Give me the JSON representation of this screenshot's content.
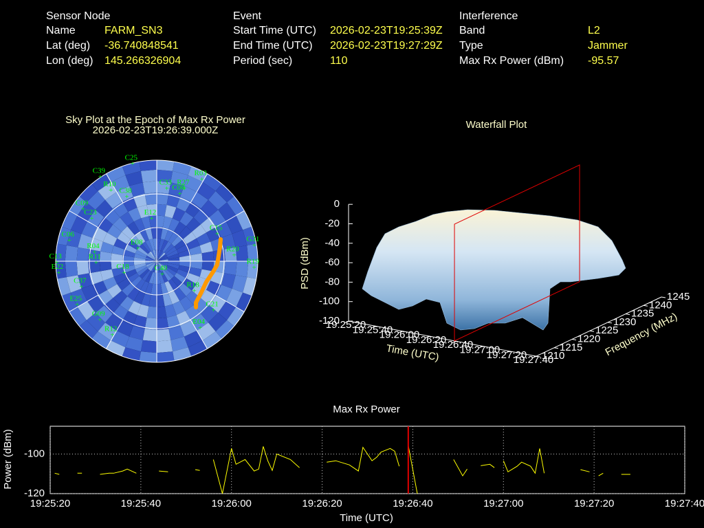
{
  "info": {
    "sensor": {
      "title": "Sensor Node",
      "rows": [
        [
          "Name",
          "FARM_SN3"
        ],
        [
          "Lat (deg)",
          "-36.740848541"
        ],
        [
          "Lon (deg)",
          "145.266326904"
        ]
      ]
    },
    "event": {
      "title": "Event",
      "rows": [
        [
          "Start Time (UTC)",
          "2026-02-23T19:25:39Z"
        ],
        [
          "End Time (UTC)",
          "2026-02-23T19:27:29Z"
        ],
        [
          "Period (sec)",
          110
        ]
      ]
    },
    "interference": {
      "title": "Interference",
      "rows": [
        [
          "Band",
          "L2"
        ],
        [
          "Type",
          "Jammer"
        ],
        [
          "Max Rx Power (dBm)",
          -95.57
        ]
      ]
    }
  },
  "chart_data": [
    {
      "type": "polar",
      "title": "Sky Plot at the Epoch of Max Rx Power",
      "subtitle": "2026-02-23T19:26:39.000Z",
      "satellite_color": "#00ff00",
      "satellites": [
        {
          "name": "C25",
          "az": 346,
          "el": 1
        },
        {
          "name": "C39",
          "az": 326,
          "el": 0
        },
        {
          "name": "R10",
          "az": 327,
          "el": 15
        },
        {
          "name": "C33",
          "az": 8,
          "el": 25
        },
        {
          "name": "R27",
          "az": 21,
          "el": 21
        },
        {
          "name": "R03",
          "az": 29,
          "el": 7
        },
        {
          "name": "C38",
          "az": 335,
          "el": 27
        },
        {
          "name": "E12",
          "az": 353,
          "el": 52
        },
        {
          "name": "C09",
          "az": 305,
          "el": 10
        },
        {
          "name": "C23",
          "az": 303,
          "el": 21
        },
        {
          "name": "C06",
          "az": 283,
          "el": 10
        },
        {
          "name": "R04",
          "az": 278,
          "el": 34
        },
        {
          "name": "R11",
          "az": 268,
          "el": 36
        },
        {
          "name": "C13",
          "az": 269,
          "el": 1
        },
        {
          "name": "E22",
          "az": 263,
          "el": 2
        },
        {
          "name": "C37",
          "az": 251,
          "el": 19
        },
        {
          "name": "E25",
          "az": 241,
          "el": 9
        },
        {
          "name": "C18",
          "az": 250,
          "el": 59
        },
        {
          "name": "C40",
          "az": 158,
          "el": 77
        },
        {
          "name": "E08",
          "az": 303,
          "el": 70
        },
        {
          "name": "C15",
          "az": 66,
          "el": 31
        },
        {
          "name": "G31",
          "az": 81,
          "el": 2
        },
        {
          "name": "R19",
          "az": 94,
          "el": 3
        },
        {
          "name": "R20",
          "az": 86,
          "el": 21
        },
        {
          "name": "C21",
          "az": 131,
          "el": 23
        },
        {
          "name": "R12",
          "az": 211,
          "el": 13
        },
        {
          "name": "G09",
          "az": 224,
          "el": 17
        },
        {
          "name": "R18",
          "az": 129,
          "el": 47
        },
        {
          "name": "E04",
          "az": 147,
          "el": 19
        },
        {
          "name": "C08",
          "az": 19,
          "el": 27
        }
      ],
      "track": {
        "color": "#ff9900",
        "az": [
          71,
          77.7,
          84.9,
          93.3,
          100.4,
          112.6,
          124.7,
          136.5,
          139.6
        ],
        "el": [
          29.8,
          32.4,
          34.7,
          36.1,
          38.9,
          42.2,
          41.6,
          39.3,
          36.1
        ]
      }
    },
    {
      "type": "surface3d",
      "title": "Waterfall Plot",
      "xlabel": "Time (UTC)",
      "ylabel": "Frequency (MHz)",
      "zlabel": "PSD (dBm)",
      "xlim": [
        "19:25:20",
        "19:27:40"
      ],
      "xticks": [
        "19:25:20",
        "19:25:40",
        "19:26:00",
        "19:26:20",
        "19:26:40",
        "19:27:00",
        "19:27:20",
        "19:27:40"
      ],
      "ylim": [
        1210,
        1245
      ],
      "yticks": [
        1210,
        1215,
        1220,
        1225,
        1230,
        1235,
        1240,
        1245
      ],
      "zlim": [
        -120,
        0
      ],
      "zticks": [
        -120,
        -100,
        -80,
        -60,
        -40,
        -20,
        0
      ],
      "marker_color": "#e00000"
    },
    {
      "type": "line",
      "title": "Max Rx Power",
      "xlabel": "Time (UTC)",
      "ylabel": "Power (dBm)",
      "color": "#ffff00",
      "marker_color": "#e00000",
      "grid": true,
      "xlim": [
        "19:25:20",
        "19:27:40"
      ],
      "xticks": [
        "19:25:20",
        "19:25:40",
        "19:26:00",
        "19:26:20",
        "19:26:40",
        "19:27:00",
        "19:27:20",
        "19:27:40"
      ],
      "ylim": [
        -120,
        -86
      ],
      "yticks": [
        -120,
        -100
      ],
      "x": [
        "19:25:21",
        "19:25:22",
        "19:25:24",
        "19:25:26",
        "19:25:27",
        "19:25:29",
        "19:25:31",
        "19:25:33",
        "19:25:34",
        "19:25:36",
        "19:25:37",
        "19:25:39",
        "19:25:41",
        "19:25:44",
        "19:25:46",
        "19:25:49",
        "19:25:52",
        "19:25:53",
        "19:25:55",
        "19:25:56",
        "19:25:58",
        "19:26:00",
        "19:26:01",
        "19:26:03",
        "19:26:05",
        "19:26:06",
        "19:26:07",
        "19:26:08",
        "19:26:09",
        "19:26:10",
        "19:26:13",
        "19:26:15",
        "19:26:18",
        "19:26:21",
        "19:26:23",
        "19:26:26",
        "19:26:28",
        "19:26:29",
        "19:26:31",
        "19:26:32",
        "19:26:33",
        "19:26:35",
        "19:26:36",
        "19:26:37",
        "19:26:38",
        "19:26:39",
        "19:26:41",
        "19:26:45",
        "19:26:49",
        "19:26:51",
        "19:26:52",
        "19:26:54",
        "19:26:55",
        "19:26:57",
        "19:26:58",
        "19:26:59",
        "19:27:00",
        "19:27:01",
        "19:27:03",
        "19:27:04",
        "19:27:06",
        "19:27:07",
        "19:27:08",
        "19:27:09",
        "19:27:13",
        "19:27:17",
        "19:27:19",
        "19:27:20",
        "19:27:21",
        "19:27:22",
        "19:27:24",
        "19:27:26",
        "19:27:28"
      ],
      "values": [
        -109.7,
        -110.3,
        null,
        -109.7,
        -109.7,
        null,
        -110.3,
        -109.7,
        -109.7,
        -108.6,
        -107.6,
        -109.7,
        null,
        -108.6,
        -109.0,
        null,
        -107.9,
        -108.3,
        null,
        -102.8,
        -120,
        -97.2,
        -105.2,
        -102.8,
        -108.6,
        -107.6,
        -96.2,
        -103.4,
        -108.3,
        -100.0,
        -102.8,
        -106.9,
        null,
        -104.1,
        -103.4,
        -105.5,
        -108.6,
        -96.6,
        -103.4,
        -101.7,
        -99.0,
        -97.2,
        -98.6,
        -106.2,
        null,
        -95.57,
        -120,
        null,
        -102.8,
        -111.0,
        -107.6,
        null,
        -105.9,
        -105.2,
        -106.9,
        null,
        -103.4,
        -109.0,
        -106.2,
        -104.1,
        -106.2,
        -109.7,
        -97.2,
        -109.7,
        null,
        -107.9,
        -109.0,
        null,
        -111.0,
        -109.7,
        null,
        -110.3,
        -110.3
      ]
    }
  ]
}
